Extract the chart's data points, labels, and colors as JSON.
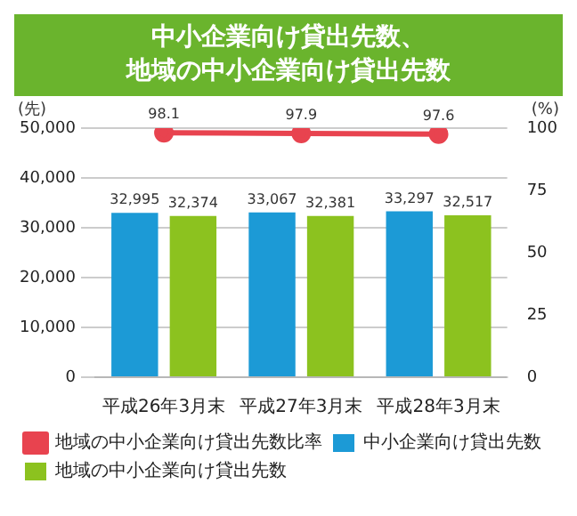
{
  "chart_data": {
    "type": "bar",
    "title": "中小企業向け貸出先数、地域の中小企業向け貸出先数",
    "ylabel": "(先)",
    "y2label": "(%)",
    "categories": [
      "平成26年3月末",
      "平成27年3月末",
      "平成28年3月末"
    ],
    "series": [
      {
        "name": "中小企業向け貸出先数",
        "color": "#1c9ad6",
        "values": [
          32995,
          33067,
          33297
        ],
        "value_labels": [
          "32,995",
          "33,067",
          "33,297"
        ]
      },
      {
        "name": "地域の中小企業向け貸出先数",
        "color": "#8cc21f",
        "values": [
          32374,
          32381,
          32517
        ],
        "value_labels": [
          "32,374",
          "32,381",
          "32,517"
        ]
      },
      {
        "name": "地域の中小企業向け貸出先数比率",
        "type": "line",
        "axis": "y2",
        "color": "#e8434f",
        "marker": "circle",
        "values": [
          98.1,
          97.9,
          97.6
        ],
        "value_labels": [
          "98.1",
          "97.9",
          "97.6"
        ]
      }
    ],
    "ylim": [
      0,
      50000
    ],
    "yticks": [
      0,
      {
        "value": 10000,
        "label": "10,000"
      },
      {
        "value": 20000,
        "label": "20,000"
      },
      {
        "value": 30000,
        "label": "30,000"
      },
      {
        "value": 40000,
        "label": "40,000"
      },
      {
        "value": 50000,
        "label": "50,000"
      }
    ],
    "y2lim": [
      0,
      100
    ],
    "y2ticks": [
      0,
      25,
      50,
      75,
      100
    ],
    "grid": "y",
    "legend": "bottom"
  }
}
